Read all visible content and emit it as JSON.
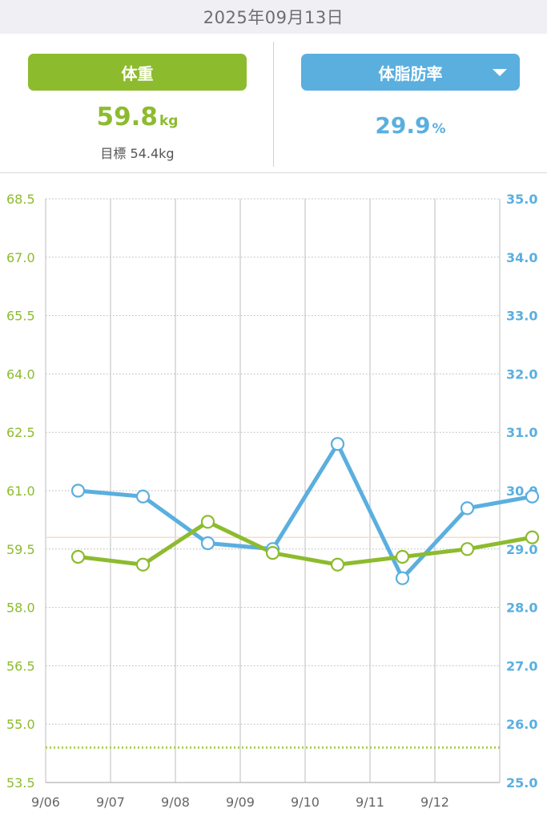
{
  "header": {
    "date": "2025年09月13日"
  },
  "weight": {
    "label": "体重",
    "value": "59.8",
    "unit": "kg",
    "target": "目標 54.4kg"
  },
  "body_fat": {
    "label": "体脂肪率",
    "value": "29.9",
    "unit": "%"
  },
  "colors": {
    "weight": "#8dbb2e",
    "body_fat": "#5aafdf",
    "reference": "#f8ddc4"
  },
  "chart_data": {
    "type": "line",
    "x": [
      "9/06",
      "9/07",
      "9/08",
      "9/09",
      "9/10",
      "9/11",
      "9/12",
      "9/13"
    ],
    "x_tick_labels": [
      "9/06",
      "9/07",
      "9/08",
      "9/09",
      "9/10",
      "9/11",
      "9/12"
    ],
    "y_left": {
      "lim": [
        53.5,
        68.5
      ],
      "ticks": [
        "68.5",
        "67.0",
        "65.5",
        "64.0",
        "62.5",
        "61.0",
        "59.5",
        "58.0",
        "56.5",
        "55.0",
        "53.5"
      ]
    },
    "y_right": {
      "lim": [
        25.0,
        35.0
      ],
      "ticks": [
        "35.0",
        "34.0",
        "33.0",
        "32.0",
        "31.0",
        "30.0",
        "29.0",
        "28.0",
        "27.0",
        "26.0",
        "25.0"
      ]
    },
    "series": [
      {
        "axis": "left",
        "color": "#8dbb2e",
        "values": [
          59.3,
          59.1,
          60.2,
          59.4,
          59.1,
          59.3,
          59.5,
          59.8
        ]
      },
      {
        "axis": "right",
        "color": "#5aafdf",
        "values": [
          30.0,
          29.9,
          29.1,
          29.0,
          30.8,
          28.5,
          29.7,
          29.9
        ]
      }
    ],
    "target_line": {
      "axis": "left",
      "value": 54.4,
      "style": "dotted",
      "color": "#a8cf5a"
    },
    "reference_line": {
      "axis": "left",
      "value": 59.8,
      "color": "#f8ddc4"
    },
    "grid": true
  }
}
